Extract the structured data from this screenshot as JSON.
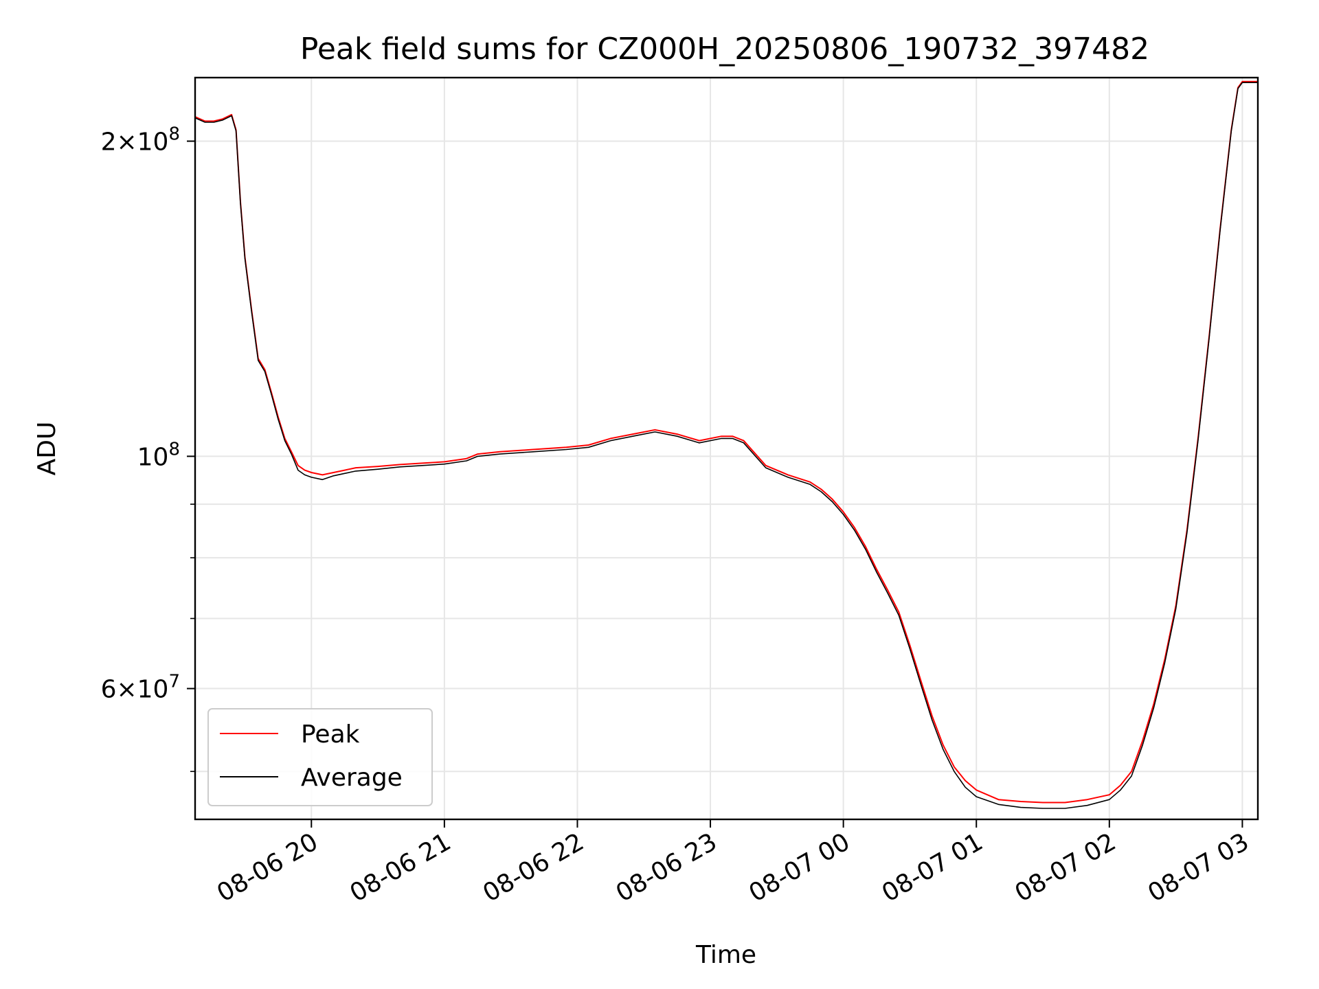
{
  "chart_data": {
    "type": "line",
    "title": "Peak field sums for CZ000H_20250806_190732_397482",
    "xlabel": "Time",
    "ylabel": "ADU",
    "yscale": "log",
    "xlim": [
      "2025-08-06 19:07:32",
      "2025-08-07 03:07:00"
    ],
    "ylim": [
      45000000,
      230000000
    ],
    "x_ticks": [
      {
        "value": "2025-08-06 20:00",
        "label": "08-06 20"
      },
      {
        "value": "2025-08-06 21:00",
        "label": "08-06 21"
      },
      {
        "value": "2025-08-06 22:00",
        "label": "08-06 22"
      },
      {
        "value": "2025-08-06 23:00",
        "label": "08-06 23"
      },
      {
        "value": "2025-08-07 00:00",
        "label": "08-07 00"
      },
      {
        "value": "2025-08-07 01:00",
        "label": "08-07 01"
      },
      {
        "value": "2025-08-07 02:00",
        "label": "08-07 02"
      },
      {
        "value": "2025-08-07 03:00",
        "label": "08-07 03"
      }
    ],
    "y_ticks": [
      {
        "value": 60000000,
        "mantissa": "6",
        "base": "10",
        "exp": "7"
      },
      {
        "value": 100000000,
        "mantissa": "",
        "base": "10",
        "exp": "8"
      },
      {
        "value": 200000000,
        "mantissa": "2",
        "base": "10",
        "exp": "8"
      }
    ],
    "y_minor_ticks": [
      50000000,
      70000000,
      80000000,
      90000000
    ],
    "grid": true,
    "legend_position": "lower-left",
    "series": [
      {
        "name": "Peak",
        "color": "#ff0000",
        "x": [
          "2025-08-06 19:07:32",
          "2025-08-06 19:12",
          "2025-08-06 19:16",
          "2025-08-06 19:20",
          "2025-08-06 19:24",
          "2025-08-06 19:26",
          "2025-08-06 19:28",
          "2025-08-06 19:30",
          "2025-08-06 19:33",
          "2025-08-06 19:36",
          "2025-08-06 19:39",
          "2025-08-06 19:42",
          "2025-08-06 19:45",
          "2025-08-06 19:48",
          "2025-08-06 19:51",
          "2025-08-06 19:54",
          "2025-08-06 19:57",
          "2025-08-06 20:00",
          "2025-08-06 20:05",
          "2025-08-06 20:10",
          "2025-08-06 20:15",
          "2025-08-06 20:20",
          "2025-08-06 20:30",
          "2025-08-06 20:40",
          "2025-08-06 20:50",
          "2025-08-06 21:00",
          "2025-08-06 21:10",
          "2025-08-06 21:15",
          "2025-08-06 21:25",
          "2025-08-06 21:40",
          "2025-08-06 21:55",
          "2025-08-06 22:05",
          "2025-08-06 22:15",
          "2025-08-06 22:25",
          "2025-08-06 22:35",
          "2025-08-06 22:45",
          "2025-08-06 22:55",
          "2025-08-06 23:05",
          "2025-08-06 23:10",
          "2025-08-06 23:15",
          "2025-08-06 23:25",
          "2025-08-06 23:35",
          "2025-08-06 23:45",
          "2025-08-06 23:50",
          "2025-08-06 23:55",
          "2025-08-07 00:00",
          "2025-08-07 00:05",
          "2025-08-07 00:10",
          "2025-08-07 00:15",
          "2025-08-07 00:20",
          "2025-08-07 00:25",
          "2025-08-07 00:30",
          "2025-08-07 00:35",
          "2025-08-07 00:40",
          "2025-08-07 00:45",
          "2025-08-07 00:50",
          "2025-08-07 00:55",
          "2025-08-07 01:00",
          "2025-08-07 01:10",
          "2025-08-07 01:20",
          "2025-08-07 01:30",
          "2025-08-07 01:40",
          "2025-08-07 01:50",
          "2025-08-07 02:00",
          "2025-08-07 02:05",
          "2025-08-07 02:10",
          "2025-08-07 02:15",
          "2025-08-07 02:20",
          "2025-08-07 02:25",
          "2025-08-07 02:30",
          "2025-08-07 02:35",
          "2025-08-07 02:40",
          "2025-08-07 02:45",
          "2025-08-07 02:50",
          "2025-08-07 02:55",
          "2025-08-07 02:58",
          "2025-08-07 03:00",
          "2025-08-07 03:07"
        ],
        "values": [
          211000000,
          209000000,
          209000000,
          210000000,
          212000000,
          205000000,
          175000000,
          155000000,
          138000000,
          124000000,
          121000000,
          115000000,
          109000000,
          104000000,
          101000000,
          98000000,
          97000000,
          96500000,
          96000000,
          96500000,
          97000000,
          97500000,
          97800000,
          98200000,
          98500000,
          98800000,
          99500000,
          100500000,
          101000000,
          101500000,
          102000000,
          102500000,
          104000000,
          105000000,
          106000000,
          105000000,
          103500000,
          104500000,
          104500000,
          103500000,
          98000000,
          96000000,
          94500000,
          93000000,
          91000000,
          88500000,
          85500000,
          82000000,
          78000000,
          74500000,
          71000000,
          66000000,
          61000000,
          56500000,
          53000000,
          50500000,
          49000000,
          48000000,
          47000000,
          46800000,
          46700000,
          46700000,
          47000000,
          47500000,
          48500000,
          50000000,
          53500000,
          58000000,
          64000000,
          72000000,
          85000000,
          104000000,
          130000000,
          165000000,
          205000000,
          225000000,
          228000000,
          228000000
        ]
      },
      {
        "name": "Average",
        "color": "#000000",
        "x": [
          "2025-08-06 19:07:32",
          "2025-08-06 19:12",
          "2025-08-06 19:16",
          "2025-08-06 19:20",
          "2025-08-06 19:24",
          "2025-08-06 19:26",
          "2025-08-06 19:28",
          "2025-08-06 19:30",
          "2025-08-06 19:33",
          "2025-08-06 19:36",
          "2025-08-06 19:39",
          "2025-08-06 19:42",
          "2025-08-06 19:45",
          "2025-08-06 19:48",
          "2025-08-06 19:51",
          "2025-08-06 19:54",
          "2025-08-06 19:57",
          "2025-08-06 20:00",
          "2025-08-06 20:05",
          "2025-08-06 20:10",
          "2025-08-06 20:15",
          "2025-08-06 20:20",
          "2025-08-06 20:30",
          "2025-08-06 20:40",
          "2025-08-06 20:50",
          "2025-08-06 21:00",
          "2025-08-06 21:10",
          "2025-08-06 21:15",
          "2025-08-06 21:25",
          "2025-08-06 21:40",
          "2025-08-06 21:55",
          "2025-08-06 22:05",
          "2025-08-06 22:15",
          "2025-08-06 22:25",
          "2025-08-06 22:35",
          "2025-08-06 22:45",
          "2025-08-06 22:55",
          "2025-08-06 23:05",
          "2025-08-06 23:10",
          "2025-08-06 23:15",
          "2025-08-06 23:25",
          "2025-08-06 23:35",
          "2025-08-06 23:45",
          "2025-08-06 23:50",
          "2025-08-06 23:55",
          "2025-08-07 00:00",
          "2025-08-07 00:05",
          "2025-08-07 00:10",
          "2025-08-07 00:15",
          "2025-08-07 00:20",
          "2025-08-07 00:25",
          "2025-08-07 00:30",
          "2025-08-07 00:35",
          "2025-08-07 00:40",
          "2025-08-07 00:45",
          "2025-08-07 00:50",
          "2025-08-07 00:55",
          "2025-08-07 01:00",
          "2025-08-07 01:10",
          "2025-08-07 01:20",
          "2025-08-07 01:30",
          "2025-08-07 01:40",
          "2025-08-07 01:50",
          "2025-08-07 02:00",
          "2025-08-07 02:05",
          "2025-08-07 02:10",
          "2025-08-07 02:15",
          "2025-08-07 02:20",
          "2025-08-07 02:25",
          "2025-08-07 02:30",
          "2025-08-07 02:35",
          "2025-08-07 02:40",
          "2025-08-07 02:45",
          "2025-08-07 02:50",
          "2025-08-07 02:55",
          "2025-08-07 02:58",
          "2025-08-07 03:00",
          "2025-08-07 03:07"
        ],
        "values": [
          210500000,
          208500000,
          208500000,
          209500000,
          211500000,
          204500000,
          174500000,
          154500000,
          137500000,
          123500000,
          120500000,
          114500000,
          108500000,
          103500000,
          100500000,
          97000000,
          96000000,
          95500000,
          95000000,
          95800000,
          96300000,
          96800000,
          97200000,
          97700000,
          98000000,
          98300000,
          99000000,
          100000000,
          100500000,
          101000000,
          101500000,
          102000000,
          103500000,
          104500000,
          105500000,
          104500000,
          103000000,
          104000000,
          104000000,
          103000000,
          97500000,
          95500000,
          94000000,
          92500000,
          90500000,
          88000000,
          85000000,
          81500000,
          77500000,
          74000000,
          70500000,
          65500000,
          60500000,
          56000000,
          52500000,
          50000000,
          48300000,
          47300000,
          46500000,
          46200000,
          46100000,
          46100000,
          46400000,
          47000000,
          48000000,
          49500000,
          53000000,
          57500000,
          63500000,
          71500000,
          84500000,
          103500000,
          129500000,
          164500000,
          204500000,
          224500000,
          227500000,
          227500000
        ]
      }
    ]
  }
}
